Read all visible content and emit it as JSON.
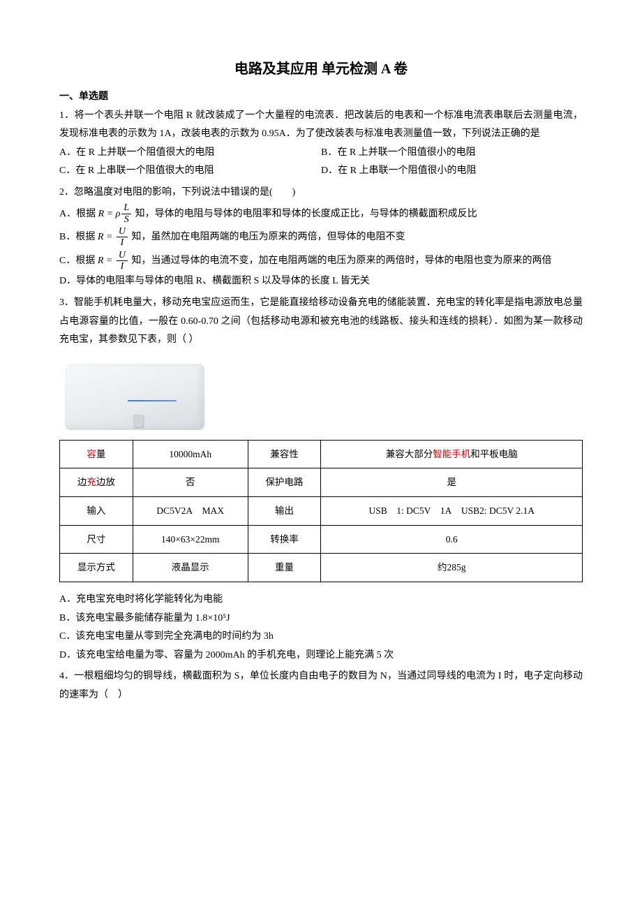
{
  "title": "电路及其应用  单元检测 A 卷",
  "section_header": "一、单选题",
  "q1": {
    "text": "1．将一个表头并联一个电阻 R 就改装成了一个大量程的电流表．把改装后的电表和一个标准电流表串联后去测量电流，发现标准电表的示数为 1A，改装电表的示数为 0.95A．为了使改装表与标准电表测量值一致，下列说法正确的是",
    "a": "A．在 R 上并联一个阻值很大的电阻",
    "b": "B．在 R 上并联一个阻值很小的电阻",
    "c": "C．在 R 上串联一个阻值很大的电阻",
    "d": "D．在 R 上串联一个阻值很小的电阻"
  },
  "q2": {
    "text": "2．忽略温度对电阻的影响，下列说法中错误的是(  )",
    "a_pre": "A．根据",
    "a_eq_l": "R = ρ",
    "a_num": "L",
    "a_den": "S",
    "a_post": "知，导体的电阻与导体的电阻率和导体的长度成正比，与导体的横截面积成反比",
    "b_pre": "B．根据",
    "b_eq_l": "R =",
    "b_num": "U",
    "b_den": "I",
    "b_post": "知，虽然加在电阻两端的电压为原来的两倍，但导体的电阻不变",
    "c_pre": "C．根据",
    "c_eq_l": "R =",
    "c_num": "U",
    "c_den": "I",
    "c_post": "知，当通过导体的电流不变，加在电阻两端的电压为原来的两倍时，导体的电阻也变为原来的两倍",
    "d": "D．导体的电阻率与导体的电阻 R、横截面积 S 以及导体的长度 L 皆无关"
  },
  "q3": {
    "text": "3．智能手机耗电量大，移动充电宝应运而生，它是能直接给移动设备充电的储能装置．充电宝的转化率是指电源放电总量占电源容量的比值，一般在 0.60-0.70 之间（包括移动电源和被充电池的线路板、接头和连线的损耗）．如图为某一款移动充电宝，其参数见下表，则（ ）",
    "a": "A．充电宝充电时将化学能转化为电能",
    "b": "B．该充电宝最多能储存能量为 1.8×10⁵J",
    "c": "C．该充电宝电量从零到完全充满电的时间约为 3h",
    "d": "D．该充电宝给电量为零、容量为 2000mAh 的手机充电，则理论上能充满 5 次"
  },
  "table": {
    "r1c1a": "容",
    "r1c1b": "量",
    "r1c2": "10000mAh",
    "r1c3": "兼容性",
    "r1c4a": "兼容大部分",
    "r1c4b": "智能手机",
    "r1c4c": "和平板电脑",
    "r2c1a": "边",
    "r2c1b": "充",
    "r2c1c": "边放",
    "r2c2": "否",
    "r2c3": "保护电路",
    "r2c4": "是",
    "r3c1": "输入",
    "r3c2": "DC5V2A MAX",
    "r3c3": "输出",
    "r3c4": "USB 1: DC5V 1A USB2: DC5V 2.1A",
    "r4c1": "尺寸",
    "r4c2": "140×63×22mm",
    "r4c3": "转换率",
    "r4c4": "0.6",
    "r5c1": "显示方式",
    "r5c2": "液晶显示",
    "r5c3": "重量",
    "r5c4": "约285g"
  },
  "q4": {
    "text": "4．一根粗细均匀的铜导线，横截面积为 S，单位长度内自由电子的数目为 N，当通过同导线的电流为 I 时，电子定向移动的速率为（ ）"
  },
  "colors": {
    "text": "#000000",
    "red": "#c00000",
    "background": "#ffffff",
    "border": "#000000"
  }
}
